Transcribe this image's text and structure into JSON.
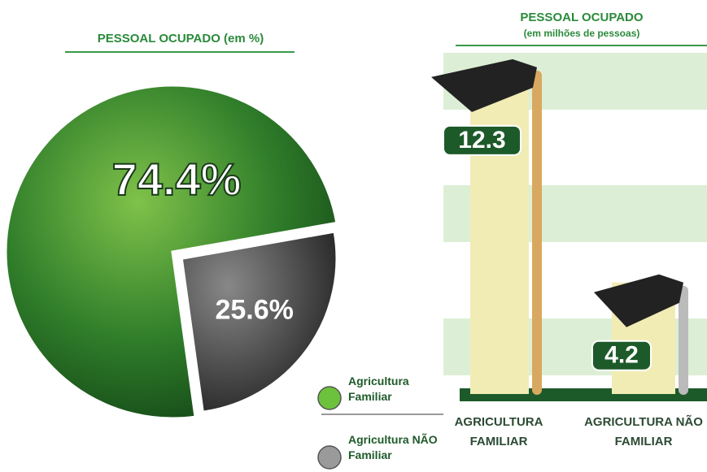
{
  "chart_data": [
    {
      "type": "pie",
      "title": "PESSOAL OCUPADO (em %)",
      "categories": [
        "Agricultura Familiar",
        "Agricultura NÃO Familiar"
      ],
      "values": [
        74.4,
        25.6
      ],
      "value_labels": [
        "74.4%",
        "25.6%"
      ],
      "colors": [
        "#2f7d2a",
        "#555555"
      ],
      "legend_colors": [
        "#6cc23a",
        "#9a9a9a"
      ]
    },
    {
      "type": "bar",
      "title": "PESSOAL OCUPADO",
      "subtitle": "(em milhões de pessoas)",
      "categories": [
        "AGRICULTURA FAMILIAR",
        "AGRICULTURA NÃO FAMILIAR"
      ],
      "values": [
        12.3,
        4.2
      ],
      "color": "#f1ecb4",
      "ylim": [
        0,
        13
      ]
    }
  ]
}
